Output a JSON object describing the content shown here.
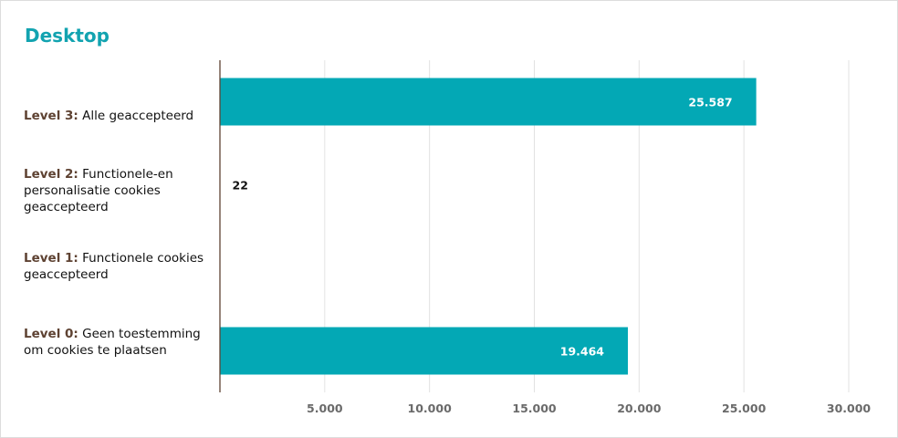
{
  "chart_data": {
    "type": "bar",
    "orientation": "horizontal",
    "title": "Desktop",
    "categories": [
      {
        "level": "Level 3:",
        "text": "Alle geaccepteerd"
      },
      {
        "level": "Level 2:",
        "text": "Functionele-en personalisatie cookies geacceptеerd"
      },
      {
        "level": "Level 1:",
        "text": "Functionele cookies geaccepteerd"
      },
      {
        "level": "Level 0:",
        "text": "Geen toestemming om cookies te plaatsen"
      }
    ],
    "values": [
      25587,
      22,
      0,
      19464
    ],
    "value_labels": [
      "25.587",
      "22",
      "",
      "19.464"
    ],
    "xlim": [
      0,
      30000
    ],
    "xticks": [
      5000,
      10000,
      15000,
      20000,
      25000,
      30000
    ],
    "xtick_labels": [
      "5.000",
      "10.000",
      "15.000",
      "20.000",
      "25.000",
      "30.000"
    ],
    "grid": true,
    "colors": {
      "bar": "#03a8b5",
      "title": "#12a3b0",
      "level": "#5e4232",
      "axis": "#5e4232",
      "grid": "#e2e2e2"
    }
  }
}
